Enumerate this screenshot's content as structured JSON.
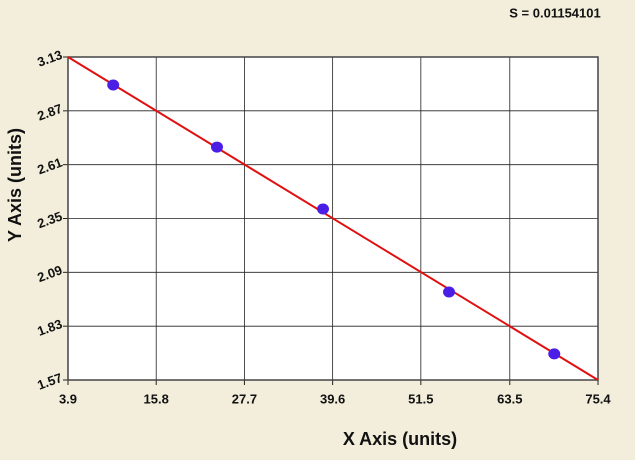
{
  "chart_data": {
    "type": "scatter",
    "annotation": "S = 0.01154101",
    "x_label": "X Axis (units)",
    "y_label": "Y Axis (units)",
    "points": {
      "x": [
        10.0,
        24.0,
        38.3,
        55.3,
        69.5
      ],
      "y": [
        2.995,
        2.695,
        2.396,
        1.995,
        1.696
      ],
      "color": "#4b1ee6"
    },
    "fit_line": {
      "x": [
        3.9,
        75.4
      ],
      "y": [
        3.13,
        1.57
      ],
      "color": "#e01010"
    },
    "xlim": [
      3.9,
      75.4
    ],
    "xticks": [
      3.9,
      15.8,
      27.7,
      39.6,
      51.5,
      63.5,
      75.4
    ],
    "ylim": [
      1.57,
      3.13
    ],
    "yticks": [
      1.57,
      1.83,
      2.09,
      2.35,
      2.61,
      2.87,
      3.13
    ],
    "grid": true
  }
}
